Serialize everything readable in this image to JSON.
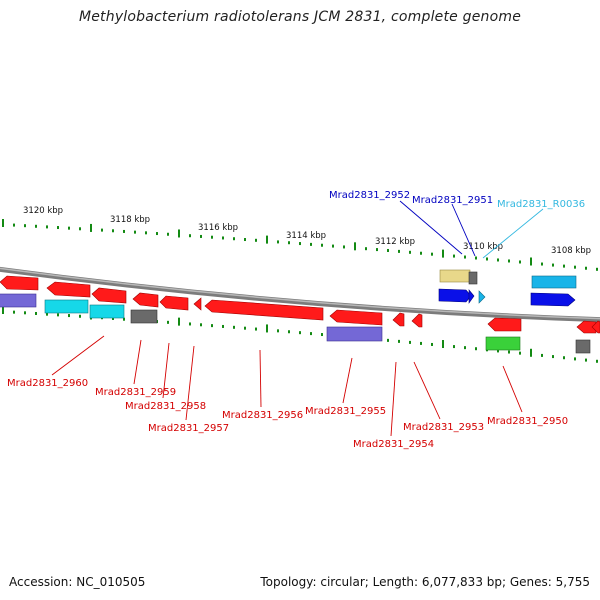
{
  "title": "Methylobacterium radiotolerans JCM 2831, complete genome",
  "kbp_labels": [
    "3120 kbp",
    "3118 kbp",
    "3116 kbp",
    "3114 kbp",
    "3112 kbp",
    "3110 kbp",
    "3108 kbp"
  ],
  "gene_labels": [
    {
      "name": "Mrad2831_2952",
      "color": "blue"
    },
    {
      "name": "Mrad2831_2951",
      "color": "blue"
    },
    {
      "name": "Mrad2831_R0036",
      "color": "cyan"
    },
    {
      "name": "Mrad2831_2960",
      "color": "red"
    },
    {
      "name": "Mrad2831_2959",
      "color": "red"
    },
    {
      "name": "Mrad2831_2958",
      "color": "red"
    },
    {
      "name": "Mrad2831_2957",
      "color": "red"
    },
    {
      "name": "Mrad2831_2956",
      "color": "red"
    },
    {
      "name": "Mrad2831_2955",
      "color": "red"
    },
    {
      "name": "Mrad2831_2954",
      "color": "red"
    },
    {
      "name": "Mrad2831_2953",
      "color": "red"
    },
    {
      "name": "Mrad2831_2950",
      "color": "red"
    }
  ],
  "footer": {
    "accession": "Accession: NC_010505",
    "summary": "Topology: circular; Length: 6,077,833 bp; Genes: 5,755"
  },
  "colors": {
    "red_gene": "#ff1a1a",
    "blue_gene": "#0a10e8",
    "cyan_gene": "#16d8e8",
    "purple_gene": "#7468d6",
    "gray_gene": "#6a6a6a",
    "green_gene": "#3ad13a",
    "khaki_gene": "#e8d88a",
    "sky_gene": "#19b4e8",
    "tick_green": "#138a13",
    "backbone": "#8c8c8c",
    "label_red": "#d40000",
    "label_blue": "#0000c0",
    "label_cyan": "#33b8e0"
  }
}
